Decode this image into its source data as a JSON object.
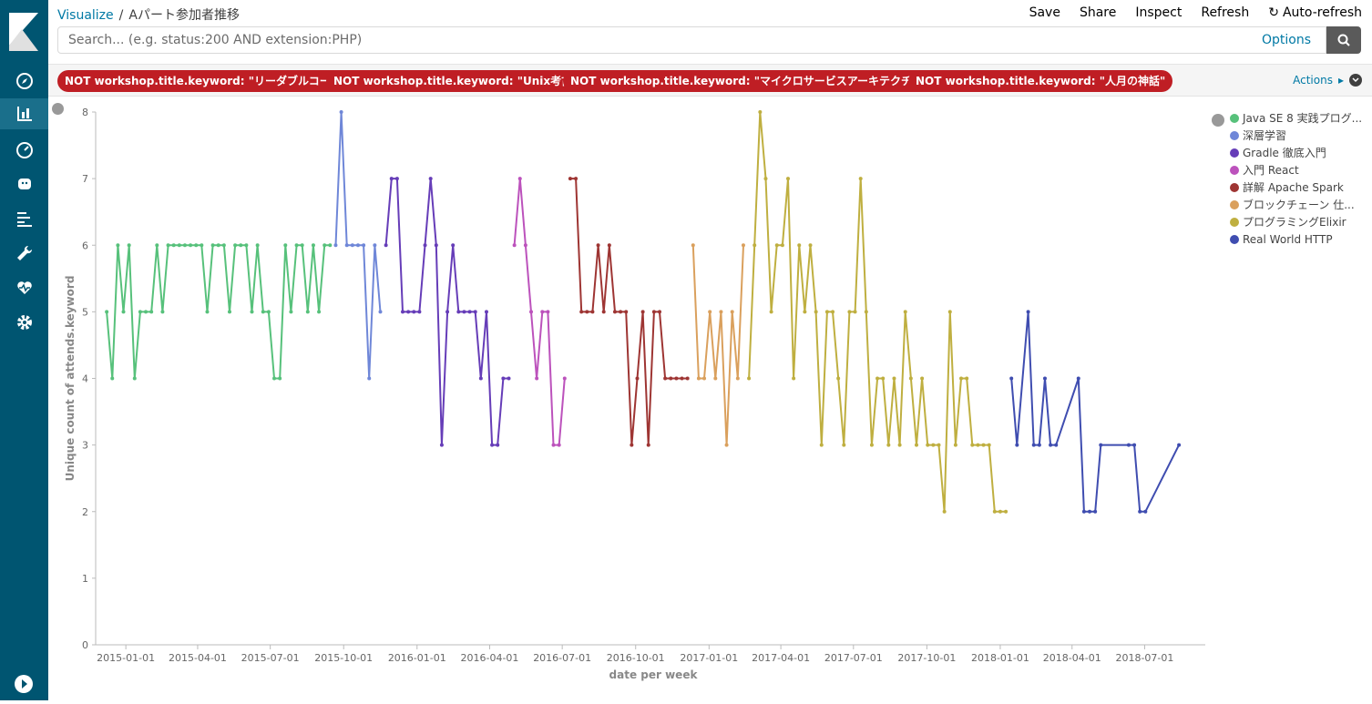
{
  "breadcrumb": {
    "root": "Visualize",
    "current": "Aパート参加者推移"
  },
  "menu": {
    "save": "Save",
    "share": "Share",
    "inspect": "Inspect",
    "refresh": "Refresh",
    "autorefresh": "Auto-refresh"
  },
  "search": {
    "placeholder": "Search... (e.g. status:200 AND extension:PHP)",
    "options": "Options"
  },
  "filters": [
    "NOT workshop.title.keyword: \"リーダブルコード\"",
    "NOT workshop.title.keyword: \"Unix考古学\"",
    "NOT workshop.title.keyword: \"マイクロサービスアーキテクチャ\"",
    "NOT workshop.title.keyword: \"人月の神話\""
  ],
  "actions_label": "Actions",
  "chart_data": {
    "type": "line",
    "xlabel": "date per week",
    "ylabel": "Unique count of attends.keyword",
    "ylim": [
      0,
      8
    ],
    "yticks": [
      "0",
      "1",
      "2",
      "3",
      "4",
      "5",
      "6",
      "7",
      "8"
    ],
    "xticks": [
      "2015-01-01",
      "2015-04-01",
      "2015-07-01",
      "2015-10-01",
      "2016-01-01",
      "2016-04-01",
      "2016-07-01",
      "2016-10-01",
      "2017-01-01",
      "2017-04-01",
      "2017-07-01",
      "2017-10-01",
      "2018-01-01",
      "2018-04-01",
      "2018-07-01"
    ],
    "series": [
      {
        "name": "Java SE 8 実践プログ...",
        "color": "#57c17b",
        "x": [
          "2014-12-08",
          "2014-12-15",
          "2014-12-22",
          "2014-12-29",
          "2015-01-05",
          "2015-01-12",
          "2015-01-19",
          "2015-01-26",
          "2015-02-02",
          "2015-02-09",
          "2015-02-16",
          "2015-02-23",
          "2015-03-02",
          "2015-03-09",
          "2015-03-16",
          "2015-03-23",
          "2015-03-30",
          "2015-04-06",
          "2015-04-13",
          "2015-04-20",
          "2015-04-27",
          "2015-05-04",
          "2015-05-11",
          "2015-05-18",
          "2015-05-25",
          "2015-06-01",
          "2015-06-08",
          "2015-06-15",
          "2015-06-22",
          "2015-06-29",
          "2015-07-06",
          "2015-07-13",
          "2015-07-20",
          "2015-07-27",
          "2015-08-03",
          "2015-08-10",
          "2015-08-17",
          "2015-08-24",
          "2015-08-31",
          "2015-09-07",
          "2015-09-14"
        ],
        "values": [
          5,
          4,
          6,
          5,
          6,
          4,
          5,
          5,
          5,
          6,
          5,
          6,
          6,
          6,
          6,
          6,
          6,
          6,
          5,
          6,
          6,
          6,
          5,
          6,
          6,
          6,
          5,
          6,
          5,
          5,
          4,
          4,
          6,
          5,
          6,
          6,
          5,
          6,
          5,
          6,
          6
        ]
      },
      {
        "name": "深層学習",
        "color": "#6f87d8",
        "x": [
          "2015-09-21",
          "2015-09-28",
          "2015-10-05",
          "2015-10-12",
          "2015-10-19",
          "2015-10-26",
          "2015-11-02",
          "2015-11-09",
          "2015-11-16"
        ],
        "values": [
          6,
          8,
          6,
          6,
          6,
          6,
          4,
          6,
          5
        ]
      },
      {
        "name": "Gradle 徹底入門",
        "color": "#663db8",
        "x": [
          "2015-11-23",
          "2015-11-30",
          "2015-12-07",
          "2015-12-14",
          "2015-12-21",
          "2015-12-28",
          "2016-01-04",
          "2016-01-11",
          "2016-01-18",
          "2016-01-25",
          "2016-02-01",
          "2016-02-08",
          "2016-02-15",
          "2016-02-22",
          "2016-02-29",
          "2016-03-07",
          "2016-03-14",
          "2016-03-21",
          "2016-03-28",
          "2016-04-04",
          "2016-04-11",
          "2016-04-18",
          "2016-04-25"
        ],
        "values": [
          6,
          7,
          7,
          5,
          5,
          5,
          5,
          6,
          7,
          6,
          3,
          5,
          6,
          5,
          5,
          5,
          5,
          4,
          5,
          3,
          3,
          4,
          4
        ]
      },
      {
        "name": "入門 React",
        "color": "#bc52bc",
        "x": [
          "2016-05-02",
          "2016-05-09",
          "2016-05-16",
          "2016-05-23",
          "2016-05-30",
          "2016-06-06",
          "2016-06-13",
          "2016-06-20",
          "2016-06-27",
          "2016-07-04"
        ],
        "values": [
          6,
          7,
          6,
          5,
          4,
          5,
          5,
          3,
          3,
          4
        ]
      },
      {
        "name": "詳解 Apache Spark",
        "color": "#9e3533",
        "x": [
          "2016-07-11",
          "2016-07-18",
          "2016-07-25",
          "2016-08-01",
          "2016-08-08",
          "2016-08-15",
          "2016-08-22",
          "2016-08-29",
          "2016-09-05",
          "2016-09-12",
          "2016-09-19",
          "2016-09-26",
          "2016-10-03",
          "2016-10-10",
          "2016-10-17",
          "2016-10-24",
          "2016-10-31",
          "2016-11-07",
          "2016-11-14",
          "2016-11-21",
          "2016-11-28",
          "2016-12-05"
        ],
        "values": [
          7,
          7,
          5,
          5,
          5,
          6,
          5,
          6,
          5,
          5,
          5,
          3,
          4,
          5,
          3,
          5,
          5,
          4,
          4,
          4,
          4,
          4
        ]
      },
      {
        "name": "ブロックチェーン 仕...",
        "color": "#daa05d",
        "x": [
          "2016-12-12",
          "2016-12-19",
          "2016-12-26",
          "2017-01-02",
          "2017-01-09",
          "2017-01-16",
          "2017-01-23",
          "2017-01-30",
          "2017-02-06",
          "2017-02-13"
        ],
        "values": [
          6,
          4,
          4,
          5,
          4,
          5,
          3,
          5,
          4,
          6
        ]
      },
      {
        "name": "プログラミングElixir",
        "color": "#bfaf40",
        "x": [
          "2017-02-20",
          "2017-02-27",
          "2017-03-06",
          "2017-03-13",
          "2017-03-20",
          "2017-03-27",
          "2017-04-03",
          "2017-04-10",
          "2017-04-17",
          "2017-04-24",
          "2017-05-01",
          "2017-05-08",
          "2017-05-15",
          "2017-05-22",
          "2017-05-29",
          "2017-06-05",
          "2017-06-12",
          "2017-06-19",
          "2017-06-26",
          "2017-07-03",
          "2017-07-10",
          "2017-07-17",
          "2017-07-24",
          "2017-07-31",
          "2017-08-07",
          "2017-08-14",
          "2017-08-21",
          "2017-08-28",
          "2017-09-04",
          "2017-09-11",
          "2017-09-18",
          "2017-09-25",
          "2017-10-02",
          "2017-10-09",
          "2017-10-16",
          "2017-10-23",
          "2017-10-30",
          "2017-11-06",
          "2017-11-13",
          "2017-11-20",
          "2017-11-27",
          "2017-12-04",
          "2017-12-11",
          "2017-12-18",
          "2017-12-25",
          "2018-01-01",
          "2018-01-08"
        ],
        "values": [
          4,
          6,
          8,
          7,
          5,
          6,
          6,
          7,
          4,
          6,
          5,
          6,
          5,
          3,
          5,
          5,
          4,
          3,
          5,
          5,
          7,
          5,
          3,
          4,
          4,
          3,
          4,
          3,
          5,
          4,
          3,
          4,
          3,
          3,
          3,
          2,
          5,
          3,
          4,
          4,
          3,
          3,
          3,
          3,
          2,
          2,
          2
        ]
      },
      {
        "name": "Real World HTTP",
        "color": "#3f4db0",
        "x": [
          "2018-01-15",
          "2018-01-22",
          "2018-02-05",
          "2018-02-12",
          "2018-02-19",
          "2018-02-26",
          "2018-03-05",
          "2018-03-12",
          "2018-04-09",
          "2018-04-16",
          "2018-04-23",
          "2018-04-30",
          "2018-05-07",
          "2018-06-11",
          "2018-06-18",
          "2018-06-25",
          "2018-07-02",
          "2018-08-13"
        ],
        "values": [
          4,
          3,
          5,
          3,
          3,
          4,
          3,
          3,
          4,
          2,
          2,
          2,
          3,
          3,
          3,
          2,
          2,
          3
        ]
      }
    ],
    "legend_position": "top-right",
    "grid": false
  }
}
